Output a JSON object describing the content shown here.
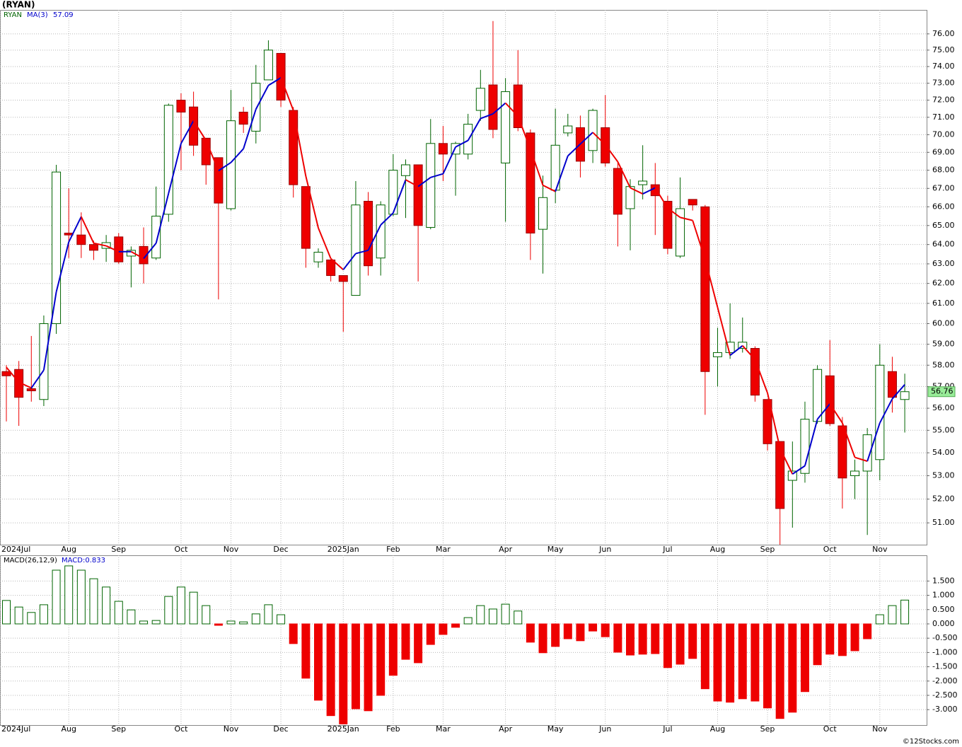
{
  "chart_data": [
    {
      "type": "candlestick",
      "title": "(RYAN)",
      "symbol": "RYAN",
      "open": [
        57.7,
        57.8,
        56.9,
        56.4,
        60.0,
        64.6,
        64.5,
        64.0,
        63.8,
        64.4,
        63.4,
        63.9,
        63.3,
        65.6,
        72.0,
        71.6,
        69.8,
        68.7,
        65.9,
        71.3,
        70.2,
        73.2,
        74.8,
        71.4,
        67.1,
        63.1,
        63.2,
        62.4,
        61.4,
        66.3,
        63.3,
        65.6,
        67.7,
        68.3,
        64.9,
        69.5,
        68.9,
        68.9,
        71.4,
        72.9,
        68.4,
        72.9,
        70.1,
        64.8,
        66.9,
        70.1,
        70.4,
        69.1,
        70.4,
        68.1,
        65.9,
        67.2,
        67.2,
        66.3,
        63.4,
        66.4,
        66.0,
        58.4,
        58.6,
        58.8,
        58.8,
        56.4,
        54.5,
        52.8,
        53.1,
        55.4,
        57.5,
        55.2,
        53.0,
        53.2,
        53.7,
        57.7,
        56.4
      ],
      "high": [
        58.0,
        58.2,
        59.4,
        60.4,
        68.3,
        67.0,
        65.7,
        64.2,
        64.5,
        64.6,
        63.9,
        64.9,
        67.1,
        71.8,
        72.4,
        72.5,
        69.8,
        68.7,
        72.6,
        71.6,
        74.1,
        75.6,
        74.8,
        71.6,
        67.1,
        63.8,
        63.2,
        62.4,
        67.4,
        66.8,
        66.3,
        68.9,
        68.6,
        68.3,
        70.9,
        70.5,
        69.6,
        71.2,
        73.8,
        76.8,
        73.3,
        75.0,
        70.3,
        67.7,
        71.5,
        71.2,
        71.1,
        71.5,
        72.3,
        68.4,
        67.5,
        69.4,
        68.4,
        66.6,
        67.6,
        66.4,
        66.1,
        59.8,
        61.0,
        60.3,
        58.9,
        56.4,
        54.5,
        54.5,
        56.3,
        58.0,
        59.2,
        55.6,
        53.7,
        55.1,
        59.0,
        58.4,
        57.6
      ],
      "low": [
        55.4,
        55.2,
        56.3,
        56.1,
        59.5,
        63.3,
        63.3,
        63.2,
        63.1,
        63.0,
        61.8,
        62.0,
        63.2,
        65.2,
        68.0,
        68.8,
        67.2,
        61.2,
        65.8,
        70.1,
        69.5,
        73.2,
        71.6,
        66.5,
        62.8,
        62.8,
        62.1,
        59.6,
        61.4,
        62.4,
        62.4,
        65.5,
        65.4,
        62.1,
        64.8,
        67.4,
        66.6,
        68.6,
        70.8,
        69.8,
        65.2,
        70.2,
        63.2,
        62.5,
        66.2,
        69.9,
        67.6,
        68.4,
        68.2,
        63.9,
        63.7,
        66.4,
        64.5,
        63.5,
        63.3,
        65.8,
        55.7,
        57.0,
        58.3,
        58.6,
        56.3,
        54.1,
        50.1,
        50.8,
        52.7,
        55.3,
        55.2,
        51.6,
        52.0,
        50.5,
        52.8,
        55.8,
        54.9
      ],
      "close": [
        57.5,
        56.5,
        56.8,
        60.0,
        67.9,
        64.5,
        64.0,
        63.7,
        64.1,
        63.1,
        63.7,
        63.0,
        65.5,
        71.7,
        71.3,
        69.4,
        68.3,
        66.2,
        70.8,
        70.6,
        73.0,
        75.0,
        72.0,
        67.2,
        63.8,
        63.6,
        62.4,
        62.1,
        66.1,
        62.9,
        66.1,
        68.0,
        68.3,
        65.0,
        69.5,
        68.9,
        69.5,
        70.6,
        72.7,
        70.3,
        72.5,
        70.4,
        64.6,
        66.5,
        69.4,
        70.5,
        68.5,
        71.4,
        68.4,
        65.6,
        67.1,
        67.4,
        66.6,
        63.8,
        65.9,
        66.1,
        57.7,
        58.6,
        59.1,
        59.1,
        56.6,
        54.4,
        51.6,
        53.2,
        55.5,
        57.8,
        55.3,
        52.9,
        53.2,
        54.8,
        58.0,
        56.5,
        56.76
      ],
      "up_color": "#006400",
      "down_color": "#ee0000",
      "ma": {
        "name": "MA(3)",
        "rising_color": "#0000cc",
        "falling_color": "#ee0000",
        "values": [
          57.9,
          57.2,
          56.93,
          57.77,
          61.57,
          64.13,
          65.47,
          64.07,
          63.93,
          63.63,
          63.63,
          63.27,
          64.07,
          66.73,
          69.5,
          70.8,
          69.67,
          67.97,
          68.43,
          69.2,
          71.47,
          72.87,
          73.33,
          71.4,
          67.67,
          64.87,
          63.27,
          62.7,
          63.53,
          63.7,
          65.03,
          65.67,
          67.47,
          67.1,
          67.6,
          67.8,
          69.3,
          69.67,
          70.93,
          71.2,
          71.83,
          71.07,
          69.17,
          67.17,
          66.83,
          68.8,
          69.47,
          70.13,
          69.43,
          68.47,
          67.03,
          66.7,
          67.03,
          65.93,
          65.43,
          65.27,
          63.23,
          60.8,
          58.47,
          58.93,
          58.27,
          56.7,
          54.2,
          53.07,
          53.43,
          55.5,
          56.2,
          55.33,
          53.8,
          53.63,
          55.33,
          56.43,
          57.09
        ]
      },
      "log": true,
      "grid": true,
      "ylim": [
        50.1,
        77.5
      ],
      "yticks": [
        {
          "value": 51,
          "label": "51.00"
        },
        {
          "value": 52,
          "label": "52.00"
        },
        {
          "value": 53,
          "label": "53.00"
        },
        {
          "value": 54,
          "label": "54.00"
        },
        {
          "value": 55,
          "label": "55.00"
        },
        {
          "value": 56,
          "label": "56.00"
        },
        {
          "value": 57,
          "label": "57.00"
        },
        {
          "value": 58,
          "label": "58.00"
        },
        {
          "value": 59,
          "label": "59.00"
        },
        {
          "value": 60,
          "label": "60.00"
        },
        {
          "value": 61,
          "label": "61.00"
        },
        {
          "value": 62,
          "label": "62.00"
        },
        {
          "value": 63,
          "label": "63.00"
        },
        {
          "value": 64,
          "label": "64.00"
        },
        {
          "value": 65,
          "label": "65.00"
        },
        {
          "value": 66,
          "label": "66.00"
        },
        {
          "value": 67,
          "label": "67.00"
        },
        {
          "value": 68,
          "label": "68.00"
        },
        {
          "value": 69,
          "label": "69.00"
        },
        {
          "value": 70,
          "label": "70.00"
        },
        {
          "value": 71,
          "label": "71.00"
        },
        {
          "value": 72,
          "label": "72.00"
        },
        {
          "value": 73,
          "label": "73.00"
        },
        {
          "value": 74,
          "label": "74.00"
        },
        {
          "value": 75,
          "label": "75.00"
        },
        {
          "value": 76,
          "label": "76.00"
        }
      ],
      "xticks": [
        {
          "value": -0.5,
          "label": "2024Jul"
        },
        {
          "value": 5,
          "label": "Aug"
        },
        {
          "value": 9,
          "label": "Sep"
        },
        {
          "value": 14,
          "label": "Oct"
        },
        {
          "value": 18,
          "label": "Nov"
        },
        {
          "value": 22,
          "label": "Dec"
        },
        {
          "value": 27,
          "label": "2025Jan"
        },
        {
          "value": 31,
          "label": "Feb"
        },
        {
          "value": 35,
          "label": "Mar"
        },
        {
          "value": 40,
          "label": "Apr"
        },
        {
          "value": 44,
          "label": "May"
        },
        {
          "value": 48,
          "label": "Jun"
        },
        {
          "value": 53,
          "label": "Jul"
        },
        {
          "value": 57,
          "label": "Aug"
        },
        {
          "value": 61,
          "label": "Sep"
        },
        {
          "value": 66,
          "label": "Oct"
        },
        {
          "value": 70,
          "label": "Nov"
        }
      ]
    },
    {
      "type": "histogram",
      "name": "MACD(26,12,9)",
      "last_label": "MACD:0.833",
      "values": [
        0.82,
        0.59,
        0.4,
        0.67,
        1.88,
        2.03,
        1.88,
        1.58,
        1.29,
        0.79,
        0.49,
        0.1,
        0.12,
        0.96,
        1.29,
        1.11,
        0.64,
        -0.05,
        0.1,
        0.07,
        0.35,
        0.67,
        0.32,
        -0.69,
        -1.9,
        -2.67,
        -3.21,
        -3.5,
        -2.97,
        -3.04,
        -2.5,
        -1.8,
        -1.24,
        -1.36,
        -0.72,
        -0.37,
        -0.12,
        0.22,
        0.64,
        0.52,
        0.69,
        0.45,
        -0.64,
        -1.01,
        -0.79,
        -0.52,
        -0.59,
        -0.25,
        -0.45,
        -0.99,
        -1.09,
        -1.06,
        -1.04,
        -1.53,
        -1.41,
        -1.21,
        -2.27,
        -2.7,
        -2.74,
        -2.62,
        -2.7,
        -2.94,
        -3.31,
        -3.09,
        -2.37,
        -1.43,
        -1.06,
        -1.11,
        -0.94,
        -0.52,
        0.32,
        0.64,
        0.833
      ],
      "up_color": "#006400",
      "down_color": "#ee0000",
      "grid": true,
      "ylim": [
        -3.54,
        2.4
      ],
      "yticks": [
        {
          "value": -3,
          "label": "-3.000"
        },
        {
          "value": -2.5,
          "label": "-2.500"
        },
        {
          "value": -2,
          "label": "-2.000"
        },
        {
          "value": -1.5,
          "label": "-1.500"
        },
        {
          "value": -1,
          "label": "-1.000"
        },
        {
          "value": -0.5,
          "label": "-0.500"
        },
        {
          "value": 0,
          "label": "0.000"
        },
        {
          "value": 0.5,
          "label": "0.500"
        },
        {
          "value": 1,
          "label": "1.000"
        },
        {
          "value": 1.5,
          "label": "1.500"
        }
      ]
    }
  ],
  "footer": "©12Stocks.com"
}
